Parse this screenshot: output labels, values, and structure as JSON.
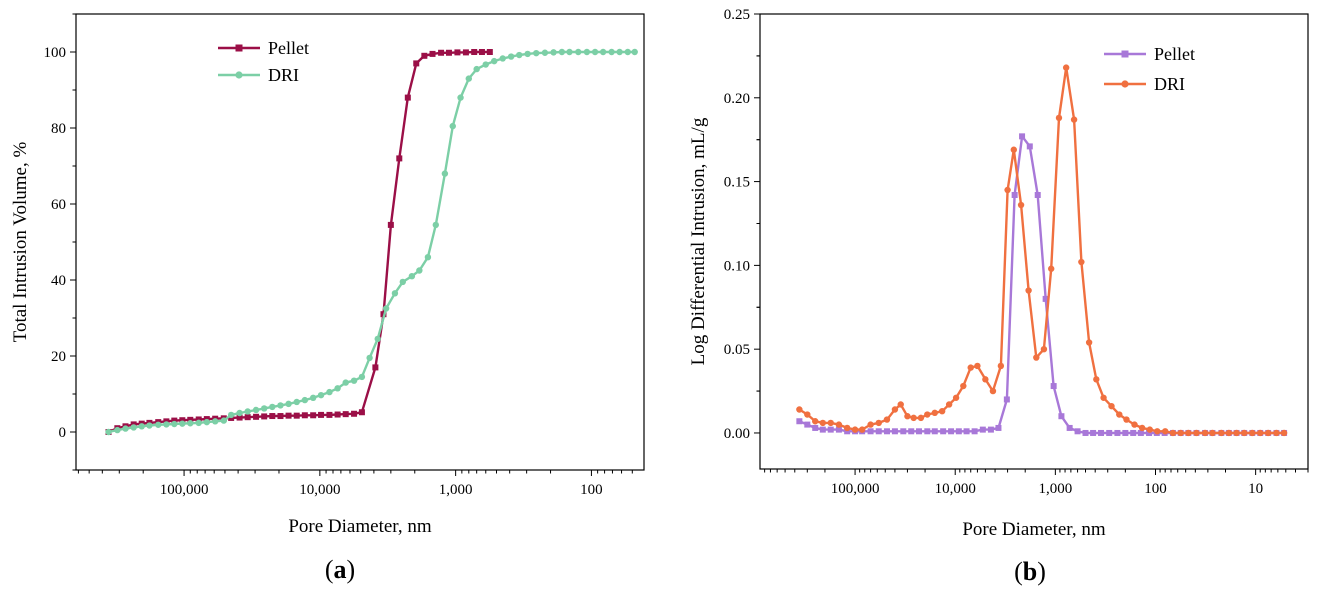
{
  "chart_data": [
    {
      "type": "line",
      "panel_label_open": "(",
      "panel_label": "a",
      "panel_label_close": ")",
      "title": "",
      "xlabel": "Pore Diameter, nm",
      "ylabel": "Total Intrusion Volume, %",
      "xscale": "log-reversed",
      "xlim": [
        625000,
        41
      ],
      "ylim": [
        -10,
        110
      ],
      "xticks": [
        {
          "value": 100000,
          "label": "100,000"
        },
        {
          "value": 10000,
          "label": "10,000"
        },
        {
          "value": 1000,
          "label": "1,000"
        },
        {
          "value": 100,
          "label": "100"
        }
      ],
      "yticks": [
        {
          "value": 0,
          "label": "0"
        },
        {
          "value": 20,
          "label": "20"
        },
        {
          "value": 40,
          "label": "40"
        },
        {
          "value": 60,
          "label": "60"
        },
        {
          "value": 80,
          "label": "80"
        },
        {
          "value": 100,
          "label": "100"
        }
      ],
      "legend_position": "top-center",
      "series": [
        {
          "name": "Pellet",
          "color": "#9b0f47",
          "marker": "square",
          "x": [
            360000,
            310000,
            270000,
            235000,
            205000,
            180000,
            155000,
            135000,
            118000,
            103000,
            90000,
            78000,
            68000,
            59000,
            51000,
            45000,
            39000,
            34000,
            29500,
            25700,
            22400,
            19500,
            17000,
            14800,
            12900,
            11200,
            9800,
            8500,
            7400,
            6450,
            5600,
            4900,
            3900,
            3400,
            3000,
            2600,
            2250,
            1950,
            1700,
            1480,
            1280,
            1120,
            970,
            840,
            730,
            640,
            560
          ],
          "y": [
            0.0,
            1.0,
            1.5,
            2.0,
            2.2,
            2.4,
            2.6,
            2.8,
            3.0,
            3.1,
            3.2,
            3.3,
            3.4,
            3.5,
            3.6,
            3.7,
            3.8,
            3.9,
            4.0,
            4.1,
            4.2,
            4.2,
            4.3,
            4.3,
            4.4,
            4.4,
            4.5,
            4.5,
            4.6,
            4.7,
            4.8,
            5.2,
            17.0,
            31.0,
            54.5,
            72.0,
            88.0,
            97.0,
            99.0,
            99.5,
            99.8,
            99.8,
            99.9,
            99.9,
            100.0,
            100.0,
            100.0
          ]
        },
        {
          "name": "DRI",
          "color": "#7ccfa6",
          "marker": "circle",
          "x": [
            360000,
            310000,
            270000,
            235000,
            205000,
            180000,
            155000,
            135000,
            118000,
            103000,
            90000,
            78000,
            68000,
            59000,
            51000,
            45000,
            39000,
            34000,
            29500,
            25700,
            22400,
            19500,
            17000,
            14800,
            12900,
            11200,
            9800,
            8500,
            7400,
            6450,
            5600,
            4900,
            4300,
            3750,
            3250,
            2800,
            2450,
            2100,
            1850,
            1600,
            1400,
            1200,
            1050,
            920,
            800,
            700,
            600,
            520,
            450,
            390,
            340,
            295,
            255,
            220,
            190,
            165,
            145,
            125,
            108,
            94,
            82,
            71,
            62,
            54,
            48
          ],
          "y": [
            0.0,
            0.5,
            0.9,
            1.2,
            1.5,
            1.7,
            1.9,
            2.0,
            2.1,
            2.2,
            2.3,
            2.4,
            2.6,
            2.8,
            3.0,
            4.5,
            5.0,
            5.4,
            5.8,
            6.2,
            6.6,
            7.0,
            7.4,
            7.9,
            8.4,
            9.0,
            9.7,
            10.5,
            11.5,
            13.0,
            13.5,
            14.5,
            19.5,
            24.5,
            32.5,
            36.5,
            39.5,
            41.0,
            42.5,
            46.0,
            54.5,
            68.0,
            80.5,
            88.0,
            93.0,
            95.5,
            96.7,
            97.6,
            98.3,
            98.8,
            99.2,
            99.5,
            99.7,
            99.8,
            99.9,
            100.0,
            100.0,
            100.0,
            100.0,
            100.0,
            100.0,
            100.0,
            100.0,
            100.0,
            100.0
          ]
        }
      ]
    },
    {
      "type": "line",
      "panel_label_open": "(",
      "panel_label": "b",
      "panel_label_close": ")",
      "title": "",
      "xlabel": "Pore Diameter, nm",
      "ylabel": "Log Differential Intrusion, mL/g",
      "xscale": "log-reversed",
      "xlim": [
        890000,
        3
      ],
      "ylim": [
        -0.0215,
        0.25
      ],
      "xticks": [
        {
          "value": 100000,
          "label": "100,000"
        },
        {
          "value": 10000,
          "label": "10,000"
        },
        {
          "value": 1000,
          "label": "1,000"
        },
        {
          "value": 100,
          "label": "100"
        },
        {
          "value": 10,
          "label": "10"
        }
      ],
      "yticks": [
        {
          "value": 0.0,
          "label": "0.00"
        },
        {
          "value": 0.05,
          "label": "0.05"
        },
        {
          "value": 0.1,
          "label": "0.10"
        },
        {
          "value": 0.15,
          "label": "0.15"
        },
        {
          "value": 0.2,
          "label": "0.20"
        },
        {
          "value": 0.25,
          "label": "0.25"
        }
      ],
      "legend_position": "top-right",
      "series": [
        {
          "name": "Pellet",
          "color": "#a878d8",
          "marker": "square",
          "x": [
            360000,
            300000,
            250000,
            210000,
            175000,
            145000,
            120000,
            100000,
            85000,
            70000,
            58000,
            48000,
            40000,
            33000,
            27500,
            23000,
            19000,
            16000,
            13200,
            11000,
            9200,
            7700,
            6400,
            5300,
            4400,
            3700,
            3050,
            2550,
            2150,
            1800,
            1500,
            1250,
            1040,
            870,
            720,
            600,
            500,
            420,
            350,
            290,
            240,
            200,
            167,
            140,
            116,
            97,
            81,
            67,
            56,
            47,
            39,
            32,
            27,
            22,
            18.5,
            15.5,
            13,
            10.8,
            9,
            7.5,
            6.2,
            5.2
          ],
          "y": [
            0.007,
            0.005,
            0.003,
            0.002,
            0.002,
            0.002,
            0.001,
            0.001,
            0.001,
            0.001,
            0.001,
            0.001,
            0.001,
            0.001,
            0.001,
            0.001,
            0.001,
            0.001,
            0.001,
            0.001,
            0.001,
            0.001,
            0.001,
            0.002,
            0.002,
            0.003,
            0.02,
            0.142,
            0.177,
            0.171,
            0.142,
            0.08,
            0.028,
            0.01,
            0.003,
            0.001,
            0.0,
            0.0,
            0.0,
            0.0,
            0.0,
            0.0,
            0.0,
            0.0,
            0.0,
            0.0,
            0.0,
            0.0,
            0.0,
            0.0,
            0.0,
            0.0,
            0.0,
            0.0,
            0.0,
            0.0,
            0.0,
            0.0,
            0.0,
            0.0,
            0.0,
            0.0
          ]
        },
        {
          "name": "DRI",
          "color": "#f07040",
          "marker": "circle",
          "x": [
            360000,
            300000,
            250000,
            210000,
            175000,
            145000,
            120000,
            100000,
            85000,
            70000,
            58000,
            48000,
            40000,
            35000,
            30000,
            26000,
            22000,
            19000,
            16000,
            13500,
            11500,
            9800,
            8300,
            7000,
            6000,
            5000,
            4200,
            3500,
            3000,
            2600,
            2200,
            1850,
            1550,
            1300,
            1100,
            920,
            780,
            650,
            550,
            460,
            390,
            330,
            275,
            230,
            195,
            162,
            136,
            114,
            96,
            80,
            67,
            56,
            47,
            39,
            32,
            27,
            22,
            18.5,
            15.5,
            13,
            10.8,
            9,
            7.5,
            6.2,
            5.2
          ],
          "y": [
            0.014,
            0.011,
            0.007,
            0.006,
            0.006,
            0.005,
            0.003,
            0.002,
            0.002,
            0.005,
            0.006,
            0.008,
            0.014,
            0.017,
            0.01,
            0.009,
            0.009,
            0.011,
            0.012,
            0.013,
            0.017,
            0.021,
            0.028,
            0.039,
            0.04,
            0.032,
            0.025,
            0.04,
            0.145,
            0.169,
            0.136,
            0.085,
            0.045,
            0.05,
            0.098,
            0.188,
            0.218,
            0.187,
            0.102,
            0.054,
            0.032,
            0.021,
            0.016,
            0.011,
            0.008,
            0.005,
            0.003,
            0.002,
            0.001,
            0.001,
            0.0,
            0.0,
            0.0,
            0.0,
            0.0,
            0.0,
            0.0,
            0.0,
            0.0,
            0.0,
            0.0,
            0.0,
            0.0,
            0.0,
            0.0
          ]
        }
      ]
    }
  ]
}
